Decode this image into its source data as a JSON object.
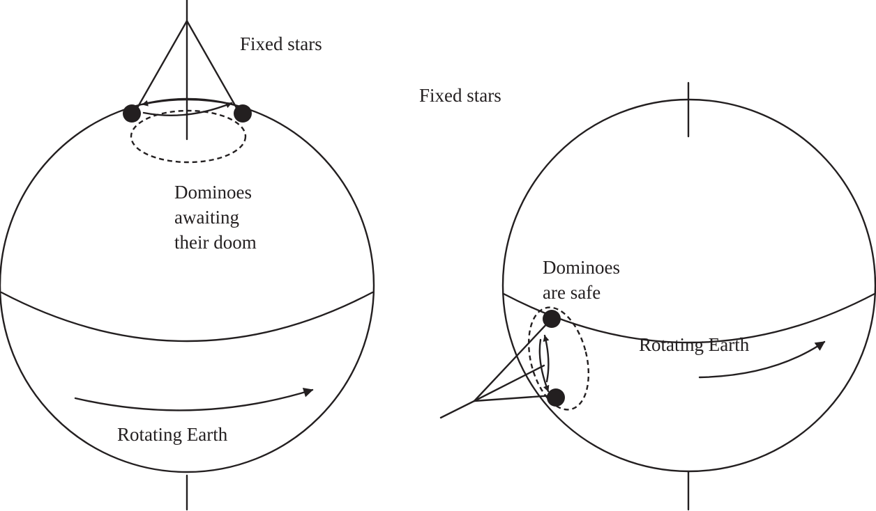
{
  "figure": {
    "left_panel": {
      "stars_label": "Fixed stars",
      "dominoes_label_lines": [
        "Dominoes",
        "awaiting",
        "their doom"
      ],
      "earth_label": "Rotating Earth"
    },
    "right_panel": {
      "stars_label": "Fixed stars",
      "dominoes_label_lines": [
        "Dominoes",
        "are safe"
      ],
      "earth_label": "Rotating Earth"
    },
    "colors": {
      "ink": "#231f20",
      "background": "#ffffff"
    }
  }
}
